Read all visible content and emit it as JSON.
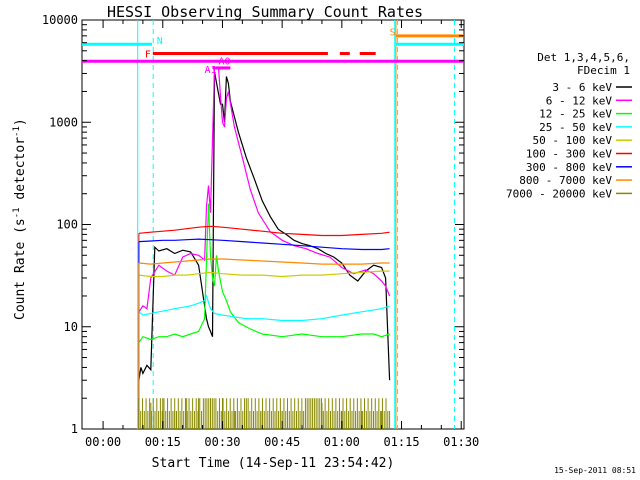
{
  "chart_data": {
    "type": "line",
    "title": "HESSI Observing Summary Count Rates",
    "xlabel": "Start Time (14-Sep-11 23:54:42)",
    "ylabel_main": "Count Rate (s",
    "ylabel_sup1": "-1",
    "ylabel_mid": " detector",
    "ylabel_sup2": "-1",
    "ylabel_end": ")",
    "yscale": "log",
    "ylim": [
      1,
      10000
    ],
    "xlim_min": [
      -5.3,
      90.7
    ],
    "x_ticks": [
      {
        "min": 0,
        "label": "00:00"
      },
      {
        "min": 15,
        "label": "00:15"
      },
      {
        "min": 30,
        "label": "00:30"
      },
      {
        "min": 45,
        "label": "00:45"
      },
      {
        "min": 60,
        "label": "01:00"
      },
      {
        "min": 75,
        "label": "01:15"
      },
      {
        "min": 90,
        "label": "01:30"
      }
    ],
    "y_ticks": [
      {
        "value": 1,
        "label": "1"
      },
      {
        "value": 10,
        "label": "10"
      },
      {
        "value": 100,
        "label": "100"
      },
      {
        "value": 1000,
        "label": "1000"
      },
      {
        "value": 10000,
        "label": "10000"
      }
    ],
    "legend_header": [
      "Det 1,3,4,5,6,",
      "FDecim 1"
    ],
    "legend_position": "right",
    "timestamp": "15-Sep-2011 08:51",
    "series": [
      {
        "name": "3 - 6 keV",
        "color": "#000000",
        "x": [
          9.0,
          9.5,
          10.0,
          11.0,
          12.0,
          13.0,
          14.0,
          16.0,
          18.0,
          20.0,
          22.0,
          24.0,
          26.0,
          26.5,
          27.0,
          27.5,
          28.0,
          29.5,
          30.0,
          30.5,
          31.0,
          31.5,
          32.0,
          34.0,
          36.0,
          38.0,
          40.0,
          42.0,
          44.0,
          46.0,
          48.0,
          50.0,
          52.0,
          54.0,
          56.0,
          58.0,
          60.0,
          62.0,
          64.0,
          66.0,
          68.0,
          70.0,
          71.0,
          72.0
        ],
        "y": [
          3.0,
          4.0,
          3.5,
          4.2,
          3.8,
          60,
          55,
          58,
          52,
          56,
          54,
          40,
          12,
          10,
          9,
          8,
          3100,
          1500,
          1500,
          1000,
          2800,
          2400,
          1600,
          800,
          450,
          280,
          170,
          120,
          90,
          80,
          70,
          65,
          62,
          58,
          52,
          48,
          42,
          32,
          28,
          35,
          40,
          38,
          30,
          3
        ]
      },
      {
        "name": "6 - 12 keV",
        "color": "#ff00ff",
        "x": [
          9.0,
          10.0,
          11.0,
          12.0,
          14.0,
          16.0,
          18.0,
          20.0,
          22.0,
          24.0,
          25.5,
          26.0,
          26.5,
          27.0,
          28.0,
          29.0,
          29.5,
          30.0,
          30.5,
          31.0,
          31.5,
          33.0,
          35.0,
          37.0,
          39.0,
          42.0,
          45.0,
          48.0,
          51.0,
          54.0,
          57.0,
          60.0,
          63.0,
          66.0,
          68.0,
          70.0,
          71.0,
          72.0
        ],
        "y": [
          14,
          16,
          15,
          30,
          40,
          35,
          32,
          48,
          52,
          50,
          45,
          150,
          240,
          130,
          3400,
          3400,
          1800,
          1000,
          900,
          1700,
          2000,
          900,
          450,
          220,
          130,
          85,
          70,
          62,
          58,
          52,
          48,
          38,
          33,
          36,
          33,
          28,
          25,
          20
        ]
      },
      {
        "name": "12 - 25 keV",
        "color": "#00ff00",
        "x": [
          9.0,
          10.0,
          12.0,
          14.0,
          16.0,
          18.0,
          20.0,
          22.0,
          24.0,
          25.5,
          26.0,
          26.5,
          27.0,
          27.5,
          28.0,
          28.5,
          29.0,
          30.0,
          31.0,
          32.0,
          34.0,
          37.0,
          40.0,
          45.0,
          50.0,
          55.0,
          60.0,
          65.0,
          68.0,
          70.0,
          72.0
        ],
        "y": [
          7,
          8,
          7.5,
          8,
          8,
          8.5,
          8,
          8.5,
          9,
          12,
          45,
          160,
          50,
          30,
          25,
          50,
          35,
          22,
          18,
          14,
          11,
          9.5,
          8.5,
          8,
          8.5,
          8,
          8,
          8.5,
          8.5,
          8,
          8.5
        ]
      },
      {
        "name": "25 - 50 keV",
        "color": "#00ffff",
        "x": [
          9.0,
          10.0,
          12.0,
          14.0,
          16.0,
          18.0,
          20.0,
          22.0,
          24.0,
          25.5,
          26.0,
          27.0,
          28.0,
          30.0,
          33.0,
          36.0,
          40.0,
          45.0,
          50.0,
          55.0,
          60.0,
          65.0,
          70.0,
          72.0
        ],
        "y": [
          14,
          13,
          13.5,
          14,
          14.5,
          15,
          15.5,
          16,
          17,
          18,
          20,
          15,
          13.5,
          13,
          12.5,
          12,
          12,
          11.5,
          11.5,
          12,
          13,
          14,
          15,
          16
        ]
      },
      {
        "name": "50 - 100 keV",
        "color": "#cccc00",
        "x": [
          9.0,
          12.0,
          15.0,
          18.0,
          21.0,
          24.0,
          27.0,
          30.0,
          35.0,
          40.0,
          45.0,
          50.0,
          55.0,
          60.0,
          65.0,
          70.0,
          72.0
        ],
        "y": [
          32,
          31,
          31,
          32,
          32,
          33,
          34,
          33,
          32,
          32,
          31,
          32,
          32,
          33,
          34,
          35,
          35
        ]
      },
      {
        "name": "100 - 300 keV",
        "color": "#ff0000",
        "x": [
          9.0,
          12.0,
          15.0,
          18.0,
          21.0,
          24.0,
          27.0,
          30.0,
          35.0,
          40.0,
          45.0,
          50.0,
          55.0,
          60.0,
          65.0,
          70.0,
          72.0
        ],
        "y": [
          82,
          84,
          86,
          88,
          91,
          94,
          96,
          94,
          90,
          86,
          82,
          80,
          78,
          78,
          80,
          82,
          84
        ]
      },
      {
        "name": "300 - 800 keV",
        "color": "#0000ff",
        "x": [
          9.0,
          12.0,
          15.0,
          18.0,
          21.0,
          24.0,
          27.0,
          30.0,
          35.0,
          40.0,
          45.0,
          50.0,
          55.0,
          60.0,
          65.0,
          70.0,
          72.0
        ],
        "y": [
          68,
          69,
          70,
          70,
          71,
          72,
          71,
          70,
          68,
          66,
          64,
          62,
          60,
          58,
          57,
          57,
          58
        ]
      },
      {
        "name": "800 - 7000 keV",
        "color": "#ff8800",
        "x": [
          9.0,
          12.0,
          15.0,
          18.0,
          21.0,
          24.0,
          27.0,
          30.0,
          35.0,
          40.0,
          45.0,
          50.0,
          55.0,
          60.0,
          65.0,
          70.0,
          72.0
        ],
        "y": [
          42,
          41,
          42,
          43,
          44,
          45,
          46,
          46,
          45,
          44,
          43,
          42,
          41,
          41,
          41,
          42,
          42
        ]
      },
      {
        "name": "7000 - 20000 keV",
        "color": "#888800",
        "x": [
          9.0,
          12.0,
          15.0,
          18.0,
          21.0,
          24.0,
          27.0,
          30.0,
          33.0,
          36.0,
          40.0,
          45.0,
          50.0,
          55.0,
          60.0,
          65.0,
          70.0,
          72.0
        ],
        "y": [
          1.5,
          1.8,
          2.0,
          1.5,
          2.0,
          2.0,
          2.0,
          2.0,
          1.5,
          2.0,
          1.5,
          1.5,
          1.5,
          1.8,
          1.5,
          1.5,
          1.5,
          1.5
        ]
      }
    ],
    "flags": [
      {
        "label": "N",
        "color": "#00ffff",
        "y": 5800,
        "segments": [
          [
            -5.3,
            12.3
          ],
          [
            73.5,
            90.7
          ]
        ],
        "label_x": 13.5,
        "label_y": 6400
      },
      {
        "label": "F",
        "color": "#ff0000",
        "y": 4700,
        "segments": [
          [
            12.5,
            56.5
          ],
          [
            59.5,
            62.0
          ],
          [
            64.5,
            68.5
          ]
        ],
        "label_x": 10.5,
        "label_y": 4700
      },
      {
        "label": "S",
        "color": "#ff8800",
        "y": 7000,
        "segments": [
          [
            73.5,
            90.7
          ]
        ],
        "label_x": 72.0,
        "label_y": 7700
      },
      {
        "label": "",
        "color": "#ff00ff",
        "y": 3950,
        "segments": [
          [
            -5.3,
            90.7
          ]
        ],
        "label_x": null,
        "label_y": null
      },
      {
        "label": "A1",
        "color": "#ff00ff",
        "y": 3400,
        "segments": [
          [
            27.5,
            28.2
          ]
        ],
        "label_x": 25.5,
        "label_y": 3300
      },
      {
        "label": "A0",
        "color": "#ff00ff",
        "y": 3400,
        "segments": [
          [
            28.2,
            32.0
          ]
        ],
        "label_x": 29.0,
        "label_y": 4000
      }
    ],
    "vlines": [
      {
        "x": 8.7,
        "color": "#00ffff",
        "dash": false
      },
      {
        "x": 12.6,
        "color": "#00ffff",
        "dash": true
      },
      {
        "x": 73.3,
        "color": "#00ffff",
        "dash": false
      },
      {
        "x": 73.6,
        "color": "#ff8800",
        "dash": false
      },
      {
        "x": 74.0,
        "color": "#00ffff",
        "dash": true
      },
      {
        "x": 88.3,
        "color": "#00ffff",
        "dash": true
      }
    ]
  }
}
